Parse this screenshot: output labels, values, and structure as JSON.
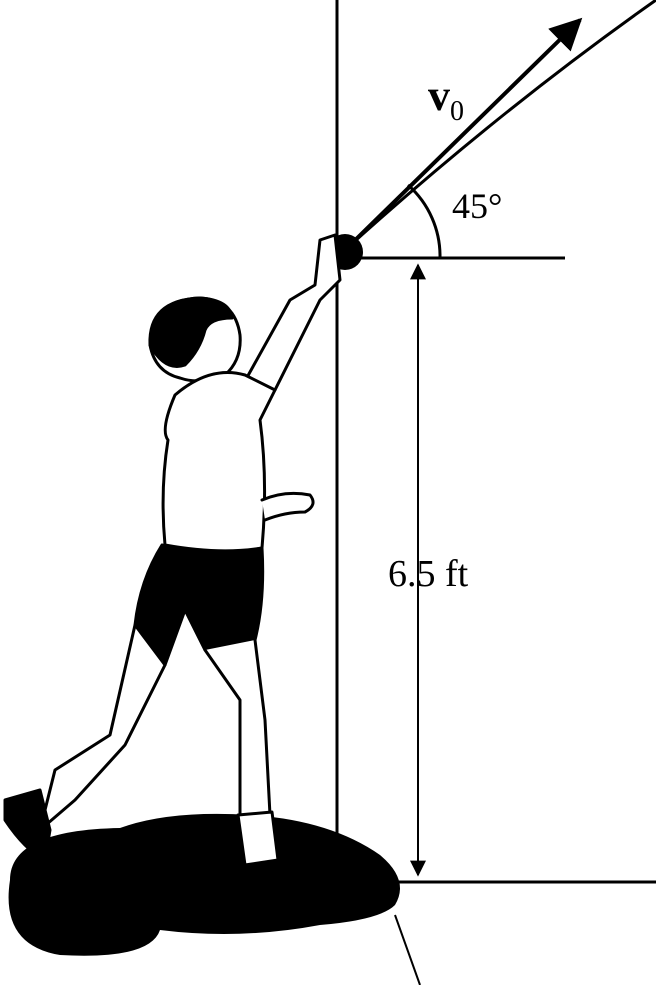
{
  "labels": {
    "velocity_symbol": "v",
    "velocity_subscript": "0",
    "angle": "45°",
    "height": "6.5 ft"
  },
  "colors": {
    "ink": "#000000",
    "background": "#ffffff"
  }
}
